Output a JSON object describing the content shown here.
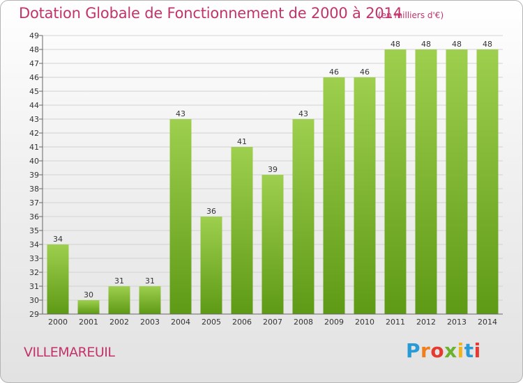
{
  "header": {
    "title": "Dotation Globale de Fonctionnement de 2000 à 2014",
    "subtitle": "(en milliers d'€)"
  },
  "commune": "VILLEMAREUIL",
  "logo": {
    "letters": [
      "P",
      "r",
      "o",
      "x",
      "i",
      "t",
      "i"
    ],
    "colors": [
      "#2a9ad6",
      "#f07e1b",
      "#e53a30",
      "#6bb32e",
      "#f0b41c",
      "#2a9ad6",
      "#e53a30"
    ]
  },
  "colors": {
    "bar_top": "#9ecf4e",
    "bar_bottom": "#5e9a16",
    "title": "#c2336a"
  },
  "chart_data": {
    "type": "bar",
    "categories": [
      "2000",
      "2001",
      "2002",
      "2003",
      "2004",
      "2005",
      "2006",
      "2007",
      "2008",
      "2009",
      "2010",
      "2011",
      "2012",
      "2013",
      "2014"
    ],
    "values": [
      34,
      30,
      31,
      31,
      43,
      36,
      41,
      39,
      43,
      46,
      46,
      48,
      48,
      48,
      48
    ],
    "ylim": [
      29,
      49
    ],
    "yticks": [
      29,
      30,
      31,
      32,
      33,
      34,
      35,
      36,
      37,
      38,
      39,
      40,
      41,
      42,
      43,
      44,
      45,
      46,
      47,
      48,
      49
    ],
    "grid": true
  }
}
